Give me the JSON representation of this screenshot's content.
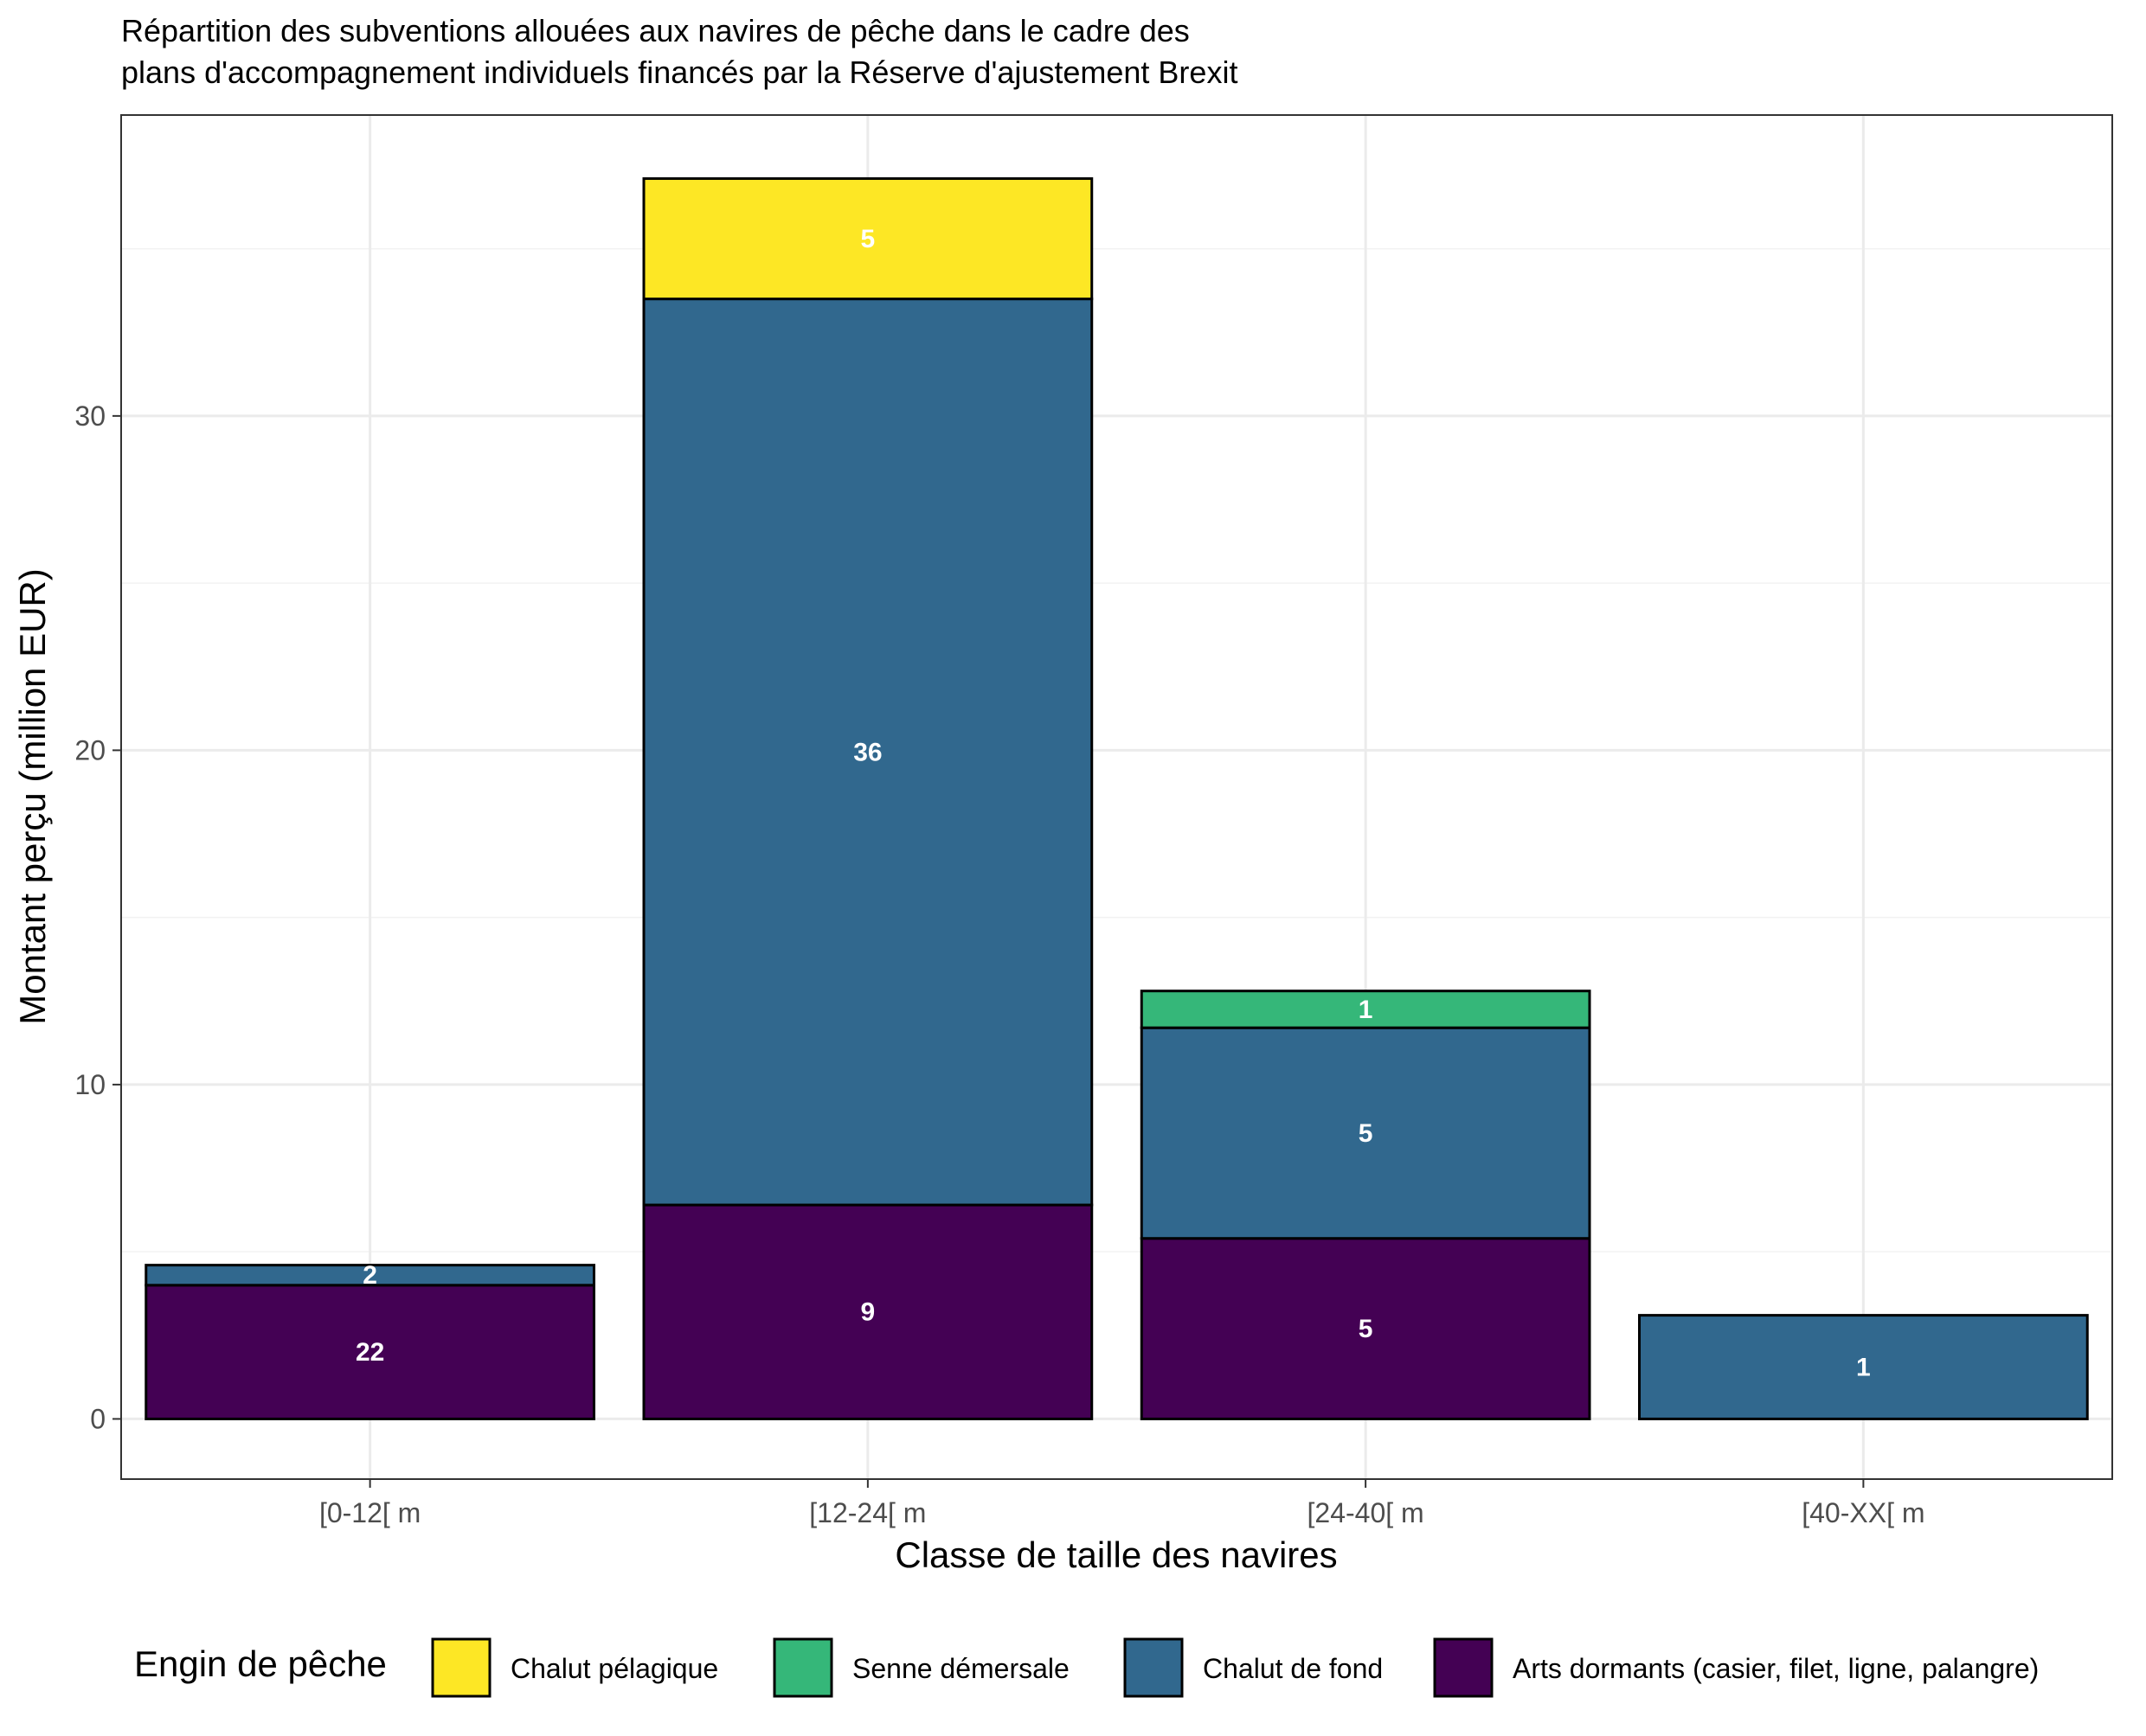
{
  "chart_data": {
    "type": "bar",
    "stacked": true,
    "title_lines": [
      "Répartition des subventions allouées aux navires de pêche dans le cadre des",
      "plans d'accompagnement individuels financés par la Réserve d'ajustement Brexit"
    ],
    "xlabel": "Classe de taille des navires",
    "ylabel": "Montant perçu (million EUR)",
    "categories": [
      "[0-12[ m",
      "[12-24[ m",
      "[24-40[ m",
      "[40-XX[ m"
    ],
    "yticks": [
      0,
      10,
      20,
      30
    ],
    "ylim": [
      -1.8,
      39
    ],
    "grid": true,
    "legend": {
      "title": "Engin de pêche",
      "position": "bottom",
      "order": [
        "Chalut pélagique",
        "Senne démersale",
        "Chalut de fond",
        "Arts dormants (casier, filet, ligne, palangre)"
      ]
    },
    "series": [
      {
        "name": "Arts dormants (casier, filet, ligne, palangre)",
        "color": "#440154",
        "values": [
          4.0,
          6.4,
          5.4,
          0
        ],
        "labels": [
          "22",
          "9",
          "5",
          null
        ]
      },
      {
        "name": "Chalut de fond",
        "color": "#31688E",
        "values": [
          0.6,
          27.1,
          6.3,
          3.1
        ],
        "labels": [
          "2",
          "36",
          "5",
          "1"
        ]
      },
      {
        "name": "Senne démersale",
        "color": "#35B779",
        "values": [
          0,
          0,
          1.1,
          0
        ],
        "labels": [
          null,
          null,
          "1",
          null
        ]
      },
      {
        "name": "Chalut pélagique",
        "color": "#FDE725",
        "values": [
          0,
          3.6,
          0,
          0
        ],
        "labels": [
          null,
          "5",
          null,
          null
        ]
      }
    ]
  }
}
